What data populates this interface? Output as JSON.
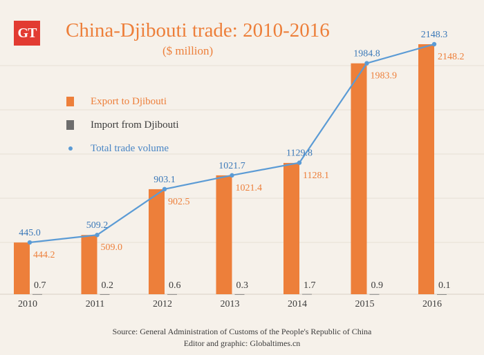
{
  "logo": "GT",
  "colors": {
    "export": "#ed7f3a",
    "import": "#6d6d6d",
    "total": "#5b9bd5"
  },
  "chart_data": {
    "type": "bar",
    "title": "China-Djibouti trade: 2010-2016",
    "subtitle": "($ million)",
    "categories": [
      "2010",
      "2011",
      "2012",
      "2013",
      "2014",
      "2015",
      "2016"
    ],
    "series": [
      {
        "name": "Export to Djibouti",
        "kind": "bar",
        "values": [
          444.2,
          509.0,
          902.5,
          1021.4,
          1128.1,
          1983.9,
          2148.2
        ],
        "labels": [
          "444.2",
          "509.0",
          "902.5",
          "1021.4",
          "1128.1",
          "1983.9",
          "2148.2"
        ]
      },
      {
        "name": "Import from Djibouti",
        "kind": "bar",
        "values": [
          0.7,
          0.2,
          0.6,
          0.3,
          1.7,
          0.9,
          0.1
        ],
        "labels": [
          "0.7",
          "0.2",
          "0.6",
          "0.3",
          "1.7",
          "0.9",
          "0.1"
        ]
      },
      {
        "name": "Total trade volume",
        "kind": "line",
        "values": [
          445.0,
          509.2,
          903.1,
          1021.7,
          1129.8,
          1984.8,
          2148.3
        ],
        "labels": [
          "445.0",
          "509.2",
          "903.1",
          "1021.7",
          "1129.8",
          "1984.8",
          "2148.3"
        ]
      }
    ],
    "ylim": [
      0,
      2148.3
    ],
    "legend_position": "upper-left",
    "grid": "horizontal"
  },
  "footer": {
    "source": "Source: General Administration of Customs of the People's Republic of China",
    "credit": "Editor and graphic: Globaltimes.cn"
  }
}
